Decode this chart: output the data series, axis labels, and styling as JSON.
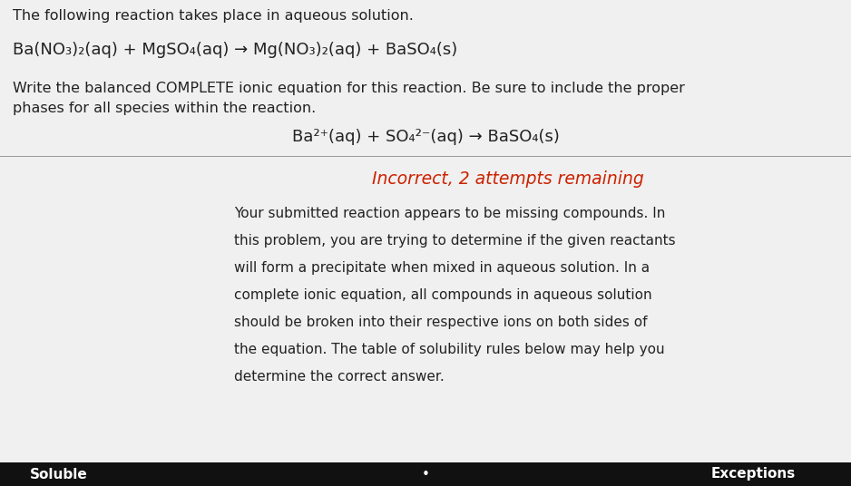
{
  "background_color": "#f0f0f0",
  "top_text": "The following reaction takes place in aqueous solution.",
  "reaction_line": "Ba(NO₃)₂(aq) + MgSO₄(aq) → Mg(NO₃)₂(aq) + BaSO₄(s)",
  "question_line1": "Write the balanced COMPLETE ionic equation for this reaction. Be sure to include the proper",
  "question_line2": "phases for all species within the reaction.",
  "submitted_equation": "Ba²⁺(aq) + SO₄²⁻(aq) → BaSO₄(s)",
  "incorrect_text": "Incorrect, 2 attempts remaining",
  "incorrect_color": "#cc2200",
  "feedback_line1": "Your submitted reaction appears to be missing compounds. In",
  "feedback_line2": "this problem, you are trying to determine if the given reactants",
  "feedback_line3": "will form a precipitate when mixed in aqueous solution. In a",
  "feedback_line4": "complete ionic equation, all compounds in aqueous solution",
  "feedback_line5": "should be broken into their respective ions on both sides of",
  "feedback_line6": "the equation. The table of solubility rules below may help you",
  "feedback_line7": "determine the correct answer.",
  "soluble_label": "Soluble",
  "exceptions_label": "Exceptions",
  "dot_label": "•",
  "table_bg": "#111111",
  "table_text_color": "#ffffff",
  "divider_color": "#999999",
  "text_color": "#222222"
}
